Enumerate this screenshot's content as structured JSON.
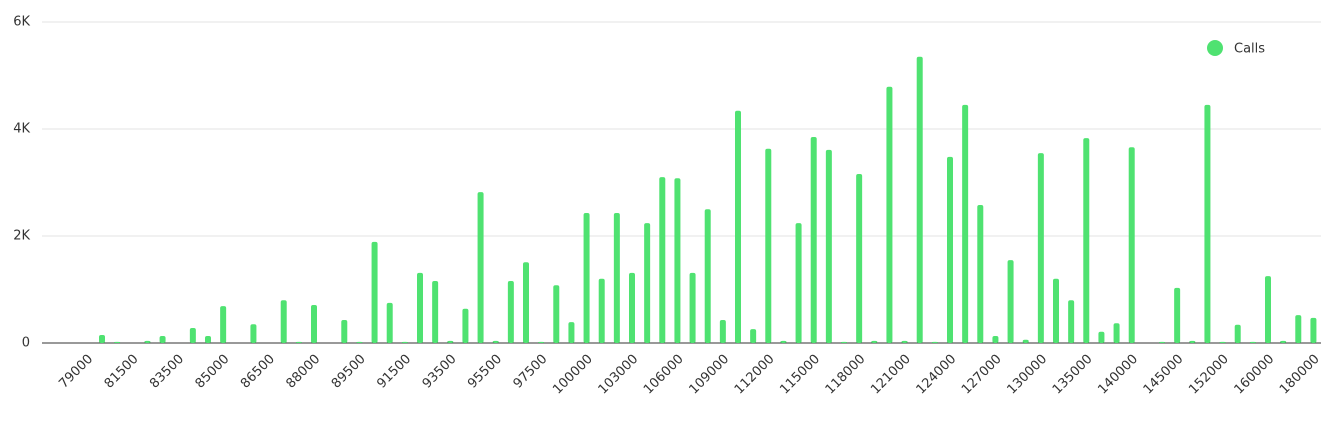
{
  "chart_data": {
    "type": "bar",
    "categories": [
      null,
      null,
      "79000",
      null,
      null,
      "81500",
      null,
      null,
      "83500",
      null,
      null,
      "85000",
      null,
      null,
      "86500",
      null,
      null,
      "88000",
      null,
      null,
      "89500",
      null,
      null,
      "91500",
      null,
      null,
      "93500",
      null,
      null,
      "95500",
      null,
      null,
      "97500",
      null,
      null,
      "100000",
      null,
      null,
      "103000",
      null,
      null,
      "106000",
      null,
      null,
      "109000",
      null,
      null,
      "112000",
      null,
      null,
      "115000",
      null,
      null,
      "118000",
      null,
      null,
      "121000",
      null,
      null,
      "124000",
      null,
      null,
      "127000",
      null,
      null,
      "130000",
      null,
      null,
      "135000",
      null,
      null,
      "140000",
      null,
      null,
      "145000",
      null,
      null,
      "152000",
      null,
      null,
      "160000",
      null,
      null,
      "180000"
    ],
    "series": [
      {
        "name": "Calls",
        "color": "#4fe271",
        "values": [
          0,
          0,
          0,
          150,
          20,
          0,
          40,
          130,
          0,
          280,
          130,
          690,
          0,
          350,
          0,
          800,
          20,
          710,
          0,
          430,
          20,
          1890,
          750,
          20,
          1310,
          1160,
          40,
          640,
          2820,
          40,
          1160,
          1510,
          20,
          1080,
          390,
          2430,
          1200,
          2430,
          1310,
          2240,
          3100,
          3080,
          1310,
          2500,
          430,
          4340,
          260,
          3630,
          40,
          2240,
          3850,
          3610,
          20,
          3160,
          40,
          4790,
          40,
          5350,
          20,
          3480,
          4450,
          2580,
          130,
          1550,
          60,
          3550,
          1200,
          800,
          3830,
          210,
          370,
          3660,
          0,
          20,
          1030,
          40,
          4450,
          20,
          340,
          20,
          1250,
          40,
          520,
          470
        ]
      }
    ],
    "ylim": [
      0,
      6000
    ],
    "yticks": [
      0,
      {
        "value": 2000,
        "label": "2K"
      },
      {
        "value": 4000,
        "label": "4K"
      },
      {
        "value": 6000,
        "label": "6K"
      }
    ],
    "grid": true,
    "legend": "top-right"
  }
}
